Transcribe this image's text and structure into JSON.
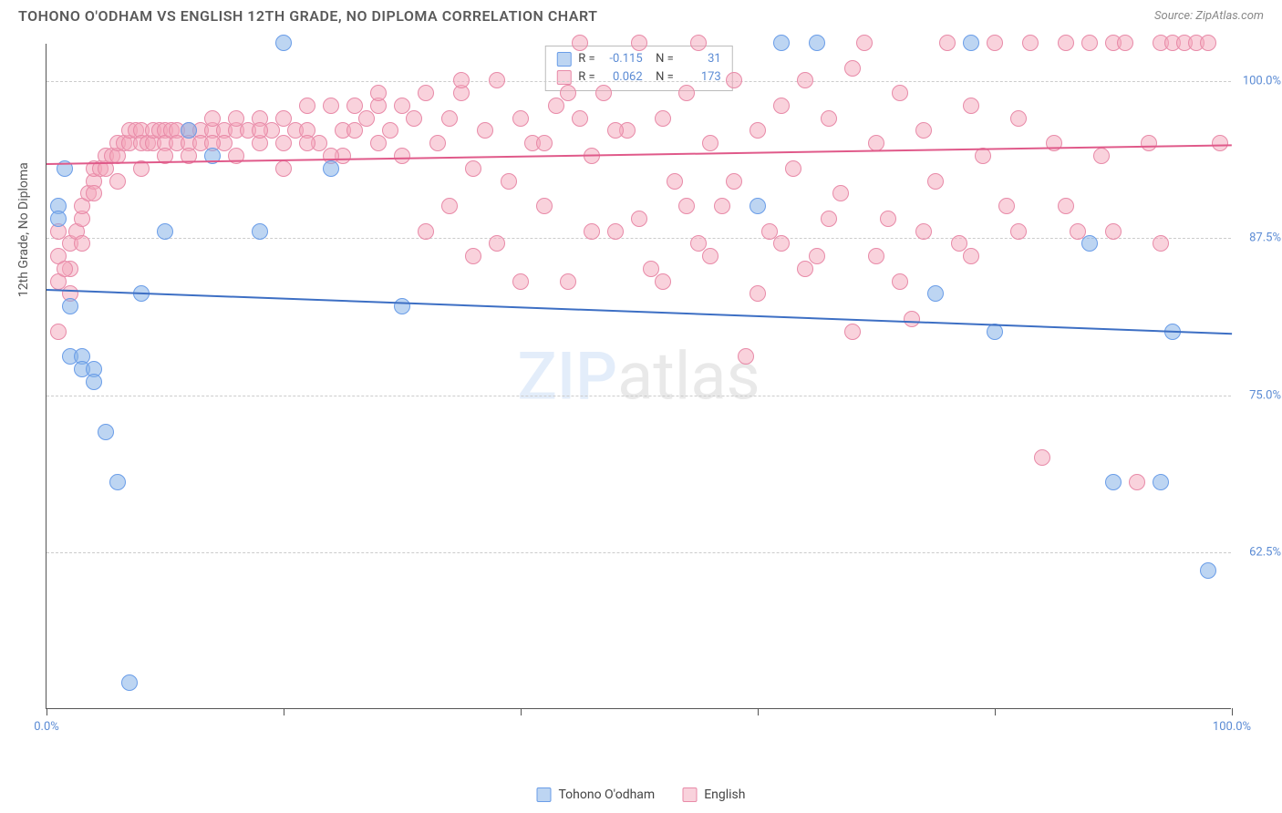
{
  "title": "TOHONO O'ODHAM VS ENGLISH 12TH GRADE, NO DIPLOMA CORRELATION CHART",
  "source": "Source: ZipAtlas.com",
  "ylabel": "12th Grade, No Diploma",
  "watermark_z": "ZIP",
  "watermark_rest": "atlas",
  "chart": {
    "type": "scatter",
    "xlim": [
      0,
      100
    ],
    "ylim": [
      50,
      103
    ],
    "xticks": [
      0,
      20,
      40,
      60,
      80,
      100
    ],
    "xtick_labels": [
      "0.0%",
      "",
      "",
      "",
      "",
      "100.0%"
    ],
    "yticks": [
      62.5,
      75.0,
      87.5,
      100.0
    ],
    "ytick_labels": [
      "62.5%",
      "75.0%",
      "87.5%",
      "100.0%"
    ],
    "grid_color": "#cccccc",
    "background_color": "#ffffff",
    "series": [
      {
        "name": "Tohono O'odham",
        "fill": "rgba(135,178,232,0.55)",
        "stroke": "#6a9de8",
        "radius": 9,
        "trend": {
          "y_at_x0": 83.5,
          "y_at_x100": 80.0,
          "color": "#3d6fc4"
        },
        "R": "-0.115",
        "N": "31",
        "points": [
          [
            1,
            90
          ],
          [
            1,
            89
          ],
          [
            2,
            82
          ],
          [
            2,
            78
          ],
          [
            3,
            78
          ],
          [
            3,
            77
          ],
          [
            4,
            77
          ],
          [
            4,
            76
          ],
          [
            5,
            72
          ],
          [
            6,
            68
          ],
          [
            7,
            52
          ],
          [
            8,
            83
          ],
          [
            10,
            88
          ],
          [
            12,
            96
          ],
          [
            14,
            94
          ],
          [
            18,
            88
          ],
          [
            20,
            103
          ],
          [
            24,
            93
          ],
          [
            30,
            82
          ],
          [
            60,
            90
          ],
          [
            65,
            103
          ],
          [
            75,
            83
          ],
          [
            78,
            103
          ],
          [
            80,
            80
          ],
          [
            88,
            87
          ],
          [
            90,
            68
          ],
          [
            94,
            68
          ],
          [
            95,
            80
          ],
          [
            98,
            61
          ],
          [
            62,
            103
          ],
          [
            1.5,
            93
          ]
        ]
      },
      {
        "name": "English",
        "fill": "rgba(243,165,185,0.5)",
        "stroke": "#e88aa8",
        "radius": 9,
        "trend": {
          "y_at_x0": 93.5,
          "y_at_x100": 95.0,
          "color": "#e05a8a"
        },
        "R": "0.062",
        "N": "173",
        "points": [
          [
            1,
            80
          ],
          [
            1,
            84
          ],
          [
            1,
            86
          ],
          [
            2,
            85
          ],
          [
            2,
            87
          ],
          [
            2.5,
            88
          ],
          [
            3,
            89
          ],
          [
            3,
            90
          ],
          [
            3.5,
            91
          ],
          [
            4,
            92
          ],
          [
            4,
            93
          ],
          [
            4.5,
            93
          ],
          [
            5,
            93
          ],
          [
            5,
            94
          ],
          [
            5.5,
            94
          ],
          [
            6,
            94
          ],
          [
            6,
            95
          ],
          [
            6.5,
            95
          ],
          [
            7,
            95
          ],
          [
            7,
            96
          ],
          [
            7.5,
            96
          ],
          [
            8,
            96
          ],
          [
            8,
            95
          ],
          [
            8.5,
            95
          ],
          [
            9,
            95
          ],
          [
            9,
            96
          ],
          [
            9.5,
            96
          ],
          [
            10,
            96
          ],
          [
            10,
            95
          ],
          [
            10.5,
            96
          ],
          [
            11,
            96
          ],
          [
            11,
            95
          ],
          [
            12,
            96
          ],
          [
            12,
            95
          ],
          [
            13,
            96
          ],
          [
            13,
            95
          ],
          [
            14,
            96
          ],
          [
            14,
            97
          ],
          [
            15,
            96
          ],
          [
            15,
            95
          ],
          [
            16,
            96
          ],
          [
            16,
            97
          ],
          [
            17,
            96
          ],
          [
            18,
            97
          ],
          [
            18,
            95
          ],
          [
            19,
            96
          ],
          [
            20,
            97
          ],
          [
            20,
            95
          ],
          [
            21,
            96
          ],
          [
            22,
            98
          ],
          [
            22,
            96
          ],
          [
            23,
            95
          ],
          [
            24,
            98
          ],
          [
            25,
            96
          ],
          [
            25,
            94
          ],
          [
            26,
            98
          ],
          [
            27,
            97
          ],
          [
            28,
            95
          ],
          [
            28,
            98
          ],
          [
            29,
            96
          ],
          [
            30,
            98
          ],
          [
            30,
            94
          ],
          [
            31,
            97
          ],
          [
            32,
            99
          ],
          [
            33,
            95
          ],
          [
            34,
            97
          ],
          [
            35,
            99
          ],
          [
            36,
            93
          ],
          [
            37,
            96
          ],
          [
            38,
            100
          ],
          [
            39,
            92
          ],
          [
            40,
            97
          ],
          [
            41,
            95
          ],
          [
            42,
            90
          ],
          [
            43,
            98
          ],
          [
            44,
            84
          ],
          [
            45,
            97
          ],
          [
            46,
            94
          ],
          [
            47,
            99
          ],
          [
            48,
            88
          ],
          [
            49,
            96
          ],
          [
            50,
            103
          ],
          [
            51,
            85
          ],
          [
            52,
            97
          ],
          [
            53,
            92
          ],
          [
            54,
            99
          ],
          [
            55,
            87
          ],
          [
            56,
            95
          ],
          [
            57,
            90
          ],
          [
            58,
            100
          ],
          [
            59,
            78
          ],
          [
            60,
            96
          ],
          [
            61,
            88
          ],
          [
            62,
            98
          ],
          [
            63,
            93
          ],
          [
            64,
            100
          ],
          [
            65,
            86
          ],
          [
            66,
            97
          ],
          [
            67,
            91
          ],
          [
            68,
            101
          ],
          [
            69,
            103
          ],
          [
            70,
            95
          ],
          [
            71,
            89
          ],
          [
            72,
            99
          ],
          [
            73,
            81
          ],
          [
            74,
            96
          ],
          [
            75,
            92
          ],
          [
            76,
            103
          ],
          [
            77,
            87
          ],
          [
            78,
            98
          ],
          [
            79,
            94
          ],
          [
            80,
            103
          ],
          [
            81,
            90
          ],
          [
            82,
            97
          ],
          [
            83,
            103
          ],
          [
            84,
            70
          ],
          [
            85,
            95
          ],
          [
            86,
            103
          ],
          [
            87,
            88
          ],
          [
            88,
            103
          ],
          [
            89,
            94
          ],
          [
            90,
            103
          ],
          [
            91,
            103
          ],
          [
            92,
            68
          ],
          [
            93,
            95
          ],
          [
            94,
            103
          ],
          [
            95,
            103
          ],
          [
            96,
            103
          ],
          [
            97,
            103
          ],
          [
            98,
            103
          ],
          [
            99,
            95
          ],
          [
            32,
            88
          ],
          [
            36,
            86
          ],
          [
            40,
            84
          ],
          [
            44,
            99
          ],
          [
            48,
            96
          ],
          [
            52,
            84
          ],
          [
            56,
            86
          ],
          [
            60,
            83
          ],
          [
            64,
            85
          ],
          [
            68,
            80
          ],
          [
            72,
            84
          ],
          [
            28,
            99
          ],
          [
            24,
            94
          ],
          [
            20,
            93
          ],
          [
            16,
            94
          ],
          [
            12,
            94
          ],
          [
            8,
            93
          ],
          [
            4,
            91
          ],
          [
            2,
            83
          ],
          [
            1,
            88
          ],
          [
            34,
            90
          ],
          [
            38,
            87
          ],
          [
            42,
            95
          ],
          [
            46,
            88
          ],
          [
            50,
            89
          ],
          [
            54,
            90
          ],
          [
            58,
            92
          ],
          [
            62,
            87
          ],
          [
            66,
            89
          ],
          [
            70,
            86
          ],
          [
            74,
            88
          ],
          [
            78,
            86
          ],
          [
            82,
            88
          ],
          [
            86,
            90
          ],
          [
            90,
            88
          ],
          [
            94,
            87
          ],
          [
            26,
            96
          ],
          [
            22,
            95
          ],
          [
            18,
            96
          ],
          [
            14,
            95
          ],
          [
            10,
            94
          ],
          [
            6,
            92
          ],
          [
            3,
            87
          ],
          [
            1.5,
            85
          ],
          [
            55,
            103
          ],
          [
            45,
            103
          ],
          [
            35,
            100
          ]
        ]
      }
    ]
  },
  "bottom_legend": [
    {
      "swatch_fill": "rgba(135,178,232,0.55)",
      "swatch_stroke": "#6a9de8",
      "label": "Tohono O'odham"
    },
    {
      "swatch_fill": "rgba(243,165,185,0.5)",
      "swatch_stroke": "#e88aa8",
      "label": "English"
    }
  ]
}
